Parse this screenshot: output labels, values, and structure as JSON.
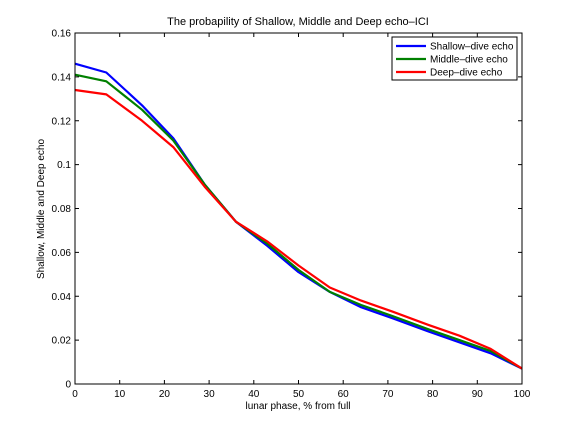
{
  "chart_data": {
    "type": "line",
    "title": "The probapility of Shallow, Middle and Deep echo–ICI",
    "xlabel": "lunar phase, % from full",
    "ylabel": "Shallow, Middle and Deep echo",
    "xlim": [
      0,
      100
    ],
    "ylim": [
      0,
      0.16
    ],
    "xticks": [
      0,
      10,
      20,
      30,
      40,
      50,
      60,
      70,
      80,
      90,
      100
    ],
    "xtick_labels": [
      "0",
      "10",
      "20",
      "30",
      "40",
      "50",
      "60",
      "70",
      "80",
      "90",
      "100"
    ],
    "yticks": [
      0,
      0.02,
      0.04,
      0.06,
      0.08,
      0.1,
      0.12,
      0.14,
      0.16
    ],
    "ytick_labels": [
      "0",
      "0.02",
      "0.04",
      "0.06",
      "0.08",
      "0.1",
      "0.12",
      "0.14",
      "0.16"
    ],
    "grid": false,
    "legend_position": "top-right",
    "x": [
      0,
      7,
      15,
      22,
      29,
      36,
      43,
      50,
      57,
      64,
      71,
      79,
      86,
      93,
      100
    ],
    "series": [
      {
        "name": "Shallow–dive echo",
        "color": "#0000ff",
        "values": [
          0.146,
          0.142,
          0.127,
          0.112,
          0.091,
          0.074,
          0.063,
          0.051,
          0.042,
          0.035,
          0.03,
          0.024,
          0.019,
          0.014,
          0.007
        ]
      },
      {
        "name": "Middle–dive echo",
        "color": "#008000",
        "values": [
          0.141,
          0.138,
          0.125,
          0.111,
          0.091,
          0.074,
          0.064,
          0.052,
          0.042,
          0.036,
          0.031,
          0.025,
          0.02,
          0.015,
          0.007
        ]
      },
      {
        "name": "Deep–dive echo",
        "color": "#ff0000",
        "values": [
          0.134,
          0.132,
          0.12,
          0.108,
          0.09,
          0.074,
          0.065,
          0.054,
          0.044,
          0.038,
          0.033,
          0.027,
          0.022,
          0.016,
          0.007
        ]
      }
    ]
  }
}
